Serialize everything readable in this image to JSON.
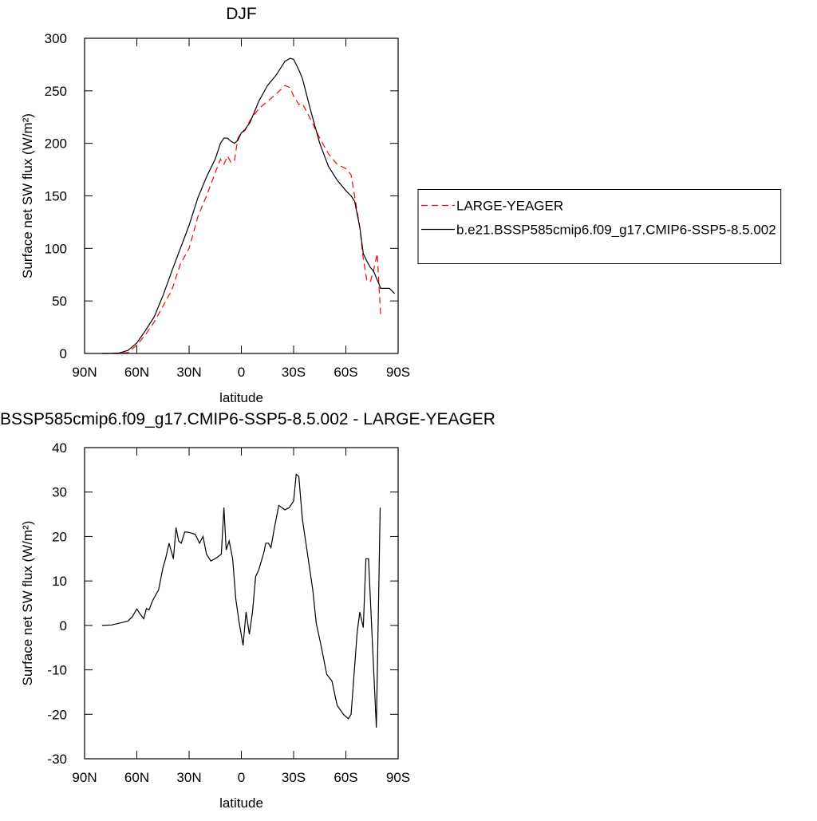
{
  "chart_data": [
    {
      "type": "line",
      "title": "DJF",
      "x_label": "latitude",
      "y_label": "Surface net SW flux (W/m²)",
      "x": [
        80,
        75,
        70,
        65,
        60,
        55,
        50,
        45,
        40,
        35,
        30,
        25,
        20,
        15,
        12,
        10,
        8,
        6,
        4,
        2,
        0,
        -2,
        -5,
        -10,
        -15,
        -20,
        -25,
        -28,
        -30,
        -33,
        -35,
        -40,
        -45,
        -50,
        -55,
        -60,
        -63,
        -65,
        -68,
        -70,
        -72,
        -74,
        -76,
        -78,
        -80,
        -85,
        -88
      ],
      "series": [
        {
          "name": "LARGE-YEAGER",
          "color": "#ff0000",
          "style": "dashed",
          "values": [
            0,
            0,
            0,
            1,
            8,
            18,
            30,
            45,
            60,
            85,
            100,
            130,
            150,
            172,
            185,
            180,
            188,
            182,
            183,
            205,
            210,
            212,
            222,
            233,
            240,
            247,
            255,
            253,
            245,
            237,
            238,
            222,
            205,
            190,
            180,
            176,
            170,
            150,
            120,
            90,
            70,
            68,
            80,
            95,
            35,
            null,
            null
          ]
        },
        {
          "name": "b.e21.BSSP585cmip6.f09_g17.CMIP6-SSP5-8.5.002",
          "color": "#000000",
          "style": "solid",
          "values": [
            0,
            0,
            0.5,
            3,
            10,
            22,
            35,
            55,
            78,
            100,
            122,
            148,
            168,
            185,
            200,
            205,
            205,
            202,
            200,
            203,
            210,
            213,
            220,
            240,
            255,
            265,
            278,
            281,
            280,
            270,
            262,
            230,
            200,
            178,
            165,
            155,
            150,
            145,
            120,
            95,
            88,
            82,
            78,
            70,
            62,
            62,
            57
          ]
        }
      ],
      "xlim": [
        90,
        -90
      ],
      "xticks": [
        {
          "value": 90,
          "label": "90N"
        },
        {
          "value": 60,
          "label": "60N"
        },
        {
          "value": 30,
          "label": "30N"
        },
        0,
        {
          "value": -30,
          "label": "30S"
        },
        {
          "value": -60,
          "label": "60S"
        },
        {
          "value": -90,
          "label": "90S"
        }
      ],
      "ylim": [
        0,
        300
      ],
      "yticks": [
        0,
        50,
        100,
        150,
        200,
        250,
        300
      ],
      "legend": "right"
    },
    {
      "type": "line",
      "title": "BSSP585cmip6.f09_g17.CMIP6-SSP5-8.5.002 - LARGE-YEAGER",
      "x_label": "latitude",
      "y_label": "Surface net SW flux (W/m²)",
      "x": [
        80,
        74.5,
        70,
        65,
        62.5,
        60,
        58,
        56,
        54.5,
        53,
        51,
        49,
        47.5,
        45,
        43.5,
        41.5,
        39,
        37.5,
        36,
        34.5,
        32.5,
        31,
        29,
        26.5,
        24,
        22,
        20,
        17.5,
        15,
        11.5,
        10,
        8.7,
        7,
        5,
        3.2,
        1.4,
        -1,
        -2.7,
        -4.6,
        -6.4,
        -8.2,
        -10,
        -13,
        -14,
        -15.5,
        -17,
        -19,
        -21.5,
        -25,
        -27.5,
        -30,
        -31.5,
        -33,
        -35,
        -38,
        -41,
        -43,
        -46,
        -49,
        -52,
        -55,
        -58.6,
        -61.4,
        -63,
        -66.5,
        -68,
        -70,
        -71.5,
        -73,
        -77.5,
        -79.7
      ],
      "values": [
        0,
        0.1,
        0.5,
        1,
        2,
        3.7,
        2.5,
        1.5,
        3.8,
        3.5,
        5.5,
        7,
        8,
        13,
        15,
        18.5,
        15,
        22,
        19,
        18.5,
        21,
        21,
        20.8,
        20.5,
        18.5,
        20,
        16,
        14.5,
        15,
        16,
        26.5,
        17,
        19,
        15,
        6,
        1,
        -4.5,
        3,
        -2,
        3,
        11,
        12.5,
        16.5,
        18.5,
        18.5,
        17.5,
        22,
        27,
        26,
        26.5,
        28,
        34,
        33.5,
        24,
        16,
        8,
        0.5,
        -5,
        -11,
        -12.5,
        -18,
        -20,
        -21,
        -20,
        -1.5,
        3,
        -0.5,
        15,
        15,
        -23,
        26.5
      ],
      "color": "#000000",
      "xlim": [
        90,
        -90
      ],
      "xticks": [
        {
          "value": 90,
          "label": "90N"
        },
        {
          "value": 60,
          "label": "60N"
        },
        {
          "value": 30,
          "label": "30N"
        },
        0,
        {
          "value": -30,
          "label": "30S"
        },
        {
          "value": -60,
          "label": "60S"
        },
        {
          "value": -90,
          "label": "90S"
        }
      ],
      "ylim": [
        -30,
        40
      ],
      "yticks": [
        -30,
        -20,
        -10,
        0,
        10,
        20,
        30,
        40
      ]
    }
  ]
}
